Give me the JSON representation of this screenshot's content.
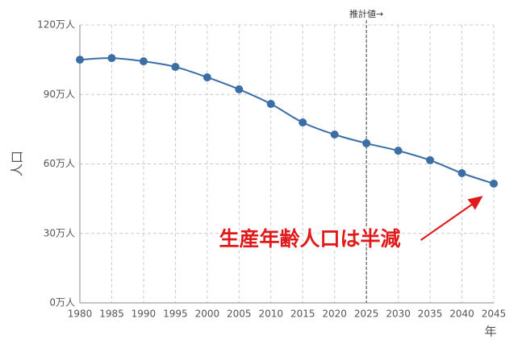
{
  "chart_data": {
    "type": "line",
    "x": [
      1980,
      1985,
      1990,
      1995,
      2000,
      2005,
      2010,
      2015,
      2020,
      2025,
      2030,
      2035,
      2040,
      2045
    ],
    "series": [
      {
        "color": "#3a6ea5",
        "values": [
          105.0,
          105.7,
          104.3,
          101.9,
          97.4,
          92.2,
          85.9,
          77.9,
          72.7,
          68.9,
          65.7,
          61.6,
          56.0,
          51.5
        ]
      }
    ],
    "xlim": [
      1980,
      2045
    ],
    "xticks": [
      1980,
      1985,
      1990,
      1995,
      2000,
      2005,
      2010,
      2015,
      2020,
      2025,
      2030,
      2035,
      2040,
      2045
    ],
    "ylim": [
      0,
      120
    ],
    "yticks": [
      {
        "value": 0,
        "label": "0万人"
      },
      {
        "value": 30,
        "label": "30万人"
      },
      {
        "value": 60,
        "label": "60万人"
      },
      {
        "value": 90,
        "label": "90万人"
      },
      {
        "value": 120,
        "label": "120万人"
      }
    ],
    "y_label": "人口",
    "x_label": "年",
    "grid": true,
    "forecast_line": {
      "x": 2025,
      "label": "推計値→"
    },
    "annotation": "生産年齢人口は半減"
  }
}
